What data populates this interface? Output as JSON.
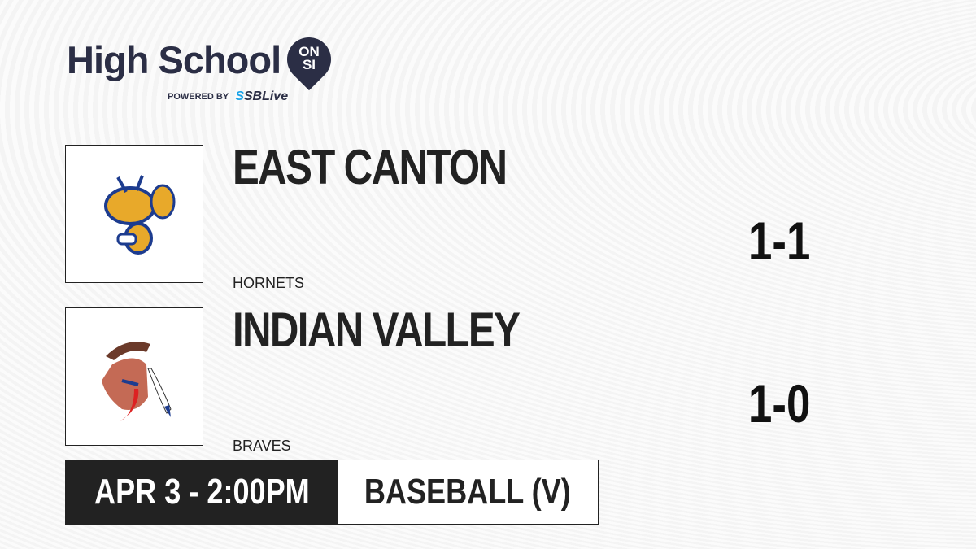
{
  "brand": {
    "title": "High School",
    "badge_top": "ON",
    "badge_bottom": "SI",
    "powered_by": "POWERED BY",
    "partner_prefix": "S",
    "partner": "SBLive"
  },
  "teams": [
    {
      "name": "EAST CANTON",
      "mascot": "HORNETS",
      "score": "1-1",
      "logo_icon": "hornet-mascot-icon"
    },
    {
      "name": "INDIAN VALLEY",
      "mascot": "BRAVES",
      "score": "1-0",
      "logo_icon": "brave-mascot-icon"
    }
  ],
  "game": {
    "datetime": "APR 3 - 2:00PM",
    "sport": "BASEBALL (V)"
  }
}
